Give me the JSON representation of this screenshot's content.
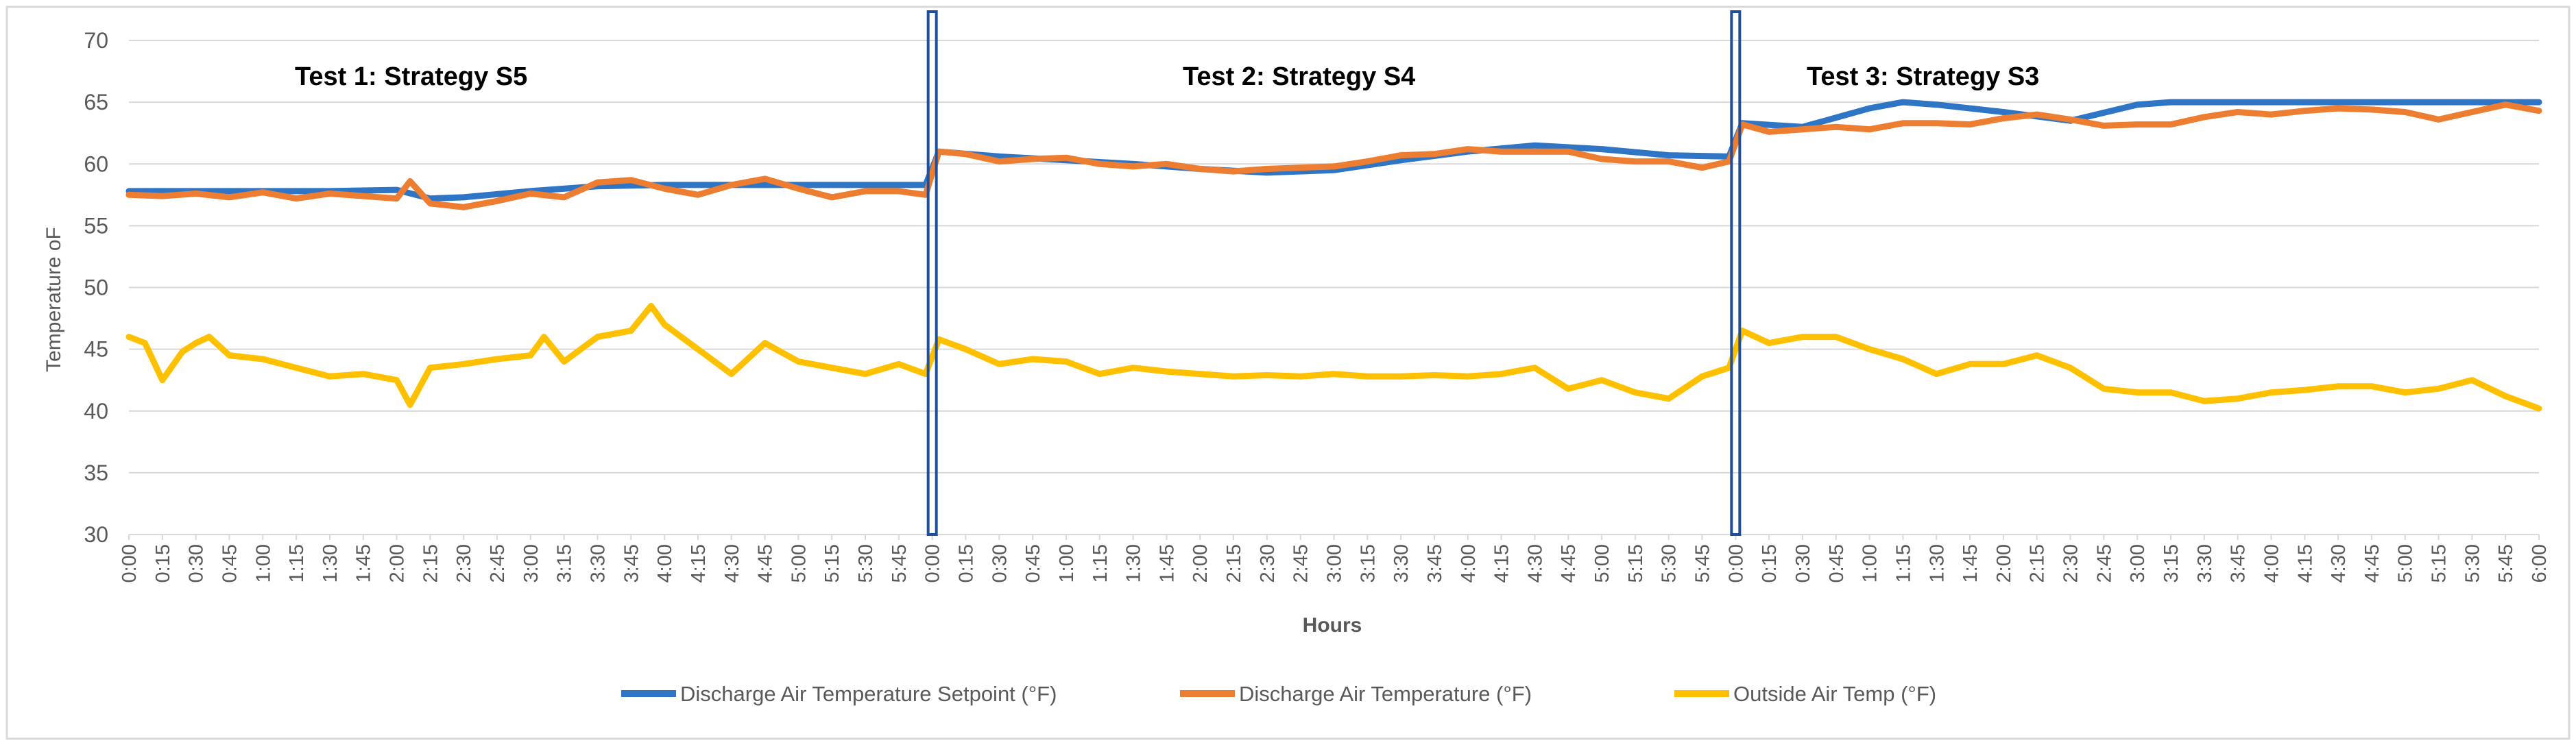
{
  "chart_data": {
    "type": "line",
    "title": "",
    "xlabel": "Hours",
    "ylabel": "Temperature oF",
    "ylim": [
      30,
      70
    ],
    "yticks": [
      30,
      35,
      40,
      45,
      50,
      55,
      60,
      65,
      70
    ],
    "grid": true,
    "legend_position": "bottom",
    "x_tick_labels": [
      "0:00",
      "0:15",
      "0:30",
      "0:45",
      "1:00",
      "1:15",
      "1:30",
      "1:45",
      "2:00",
      "2:15",
      "2:30",
      "2:45",
      "3:00",
      "3:15",
      "3:30",
      "3:45",
      "4:00",
      "4:15",
      "4:30",
      "4:45",
      "5:00",
      "5:15",
      "5:30",
      "5:45",
      "0:00",
      "0:15",
      "0:30",
      "0:45",
      "1:00",
      "1:15",
      "1:30",
      "1:45",
      "2:00",
      "2:15",
      "2:30",
      "2:45",
      "3:00",
      "3:15",
      "3:30",
      "3:45",
      "4:00",
      "4:15",
      "4:30",
      "4:45",
      "5:00",
      "5:15",
      "5:30",
      "5:45",
      "0:00",
      "0:15",
      "0:30",
      "0:45",
      "1:00",
      "1:15",
      "1:30",
      "1:45",
      "2:00",
      "2:15",
      "2:30",
      "2:45",
      "3:00",
      "3:15",
      "3:30",
      "3:45",
      "4:00",
      "4:15",
      "4:30",
      "4:45",
      "5:00",
      "5:15",
      "5:30",
      "5:45",
      "6:00"
    ],
    "x_unit": "hours since start of combined 18-hour record",
    "segments": [
      {
        "label": "Test 1: Strategy S5",
        "start": 0,
        "end": 6
      },
      {
        "label": "Test 2: Strategy S4",
        "start": 6,
        "end": 12
      },
      {
        "label": "Test 3: Strategy S3",
        "start": 12,
        "end": 18
      }
    ],
    "series": [
      {
        "name": "Discharge Air Temperature Setpoint  (°F)",
        "color": "#2e75c6",
        "x": [
          0,
          0.5,
          1,
          1.5,
          2,
          2.25,
          2.5,
          3,
          3.5,
          4,
          4.5,
          5,
          5.5,
          5.95,
          6.05,
          6.5,
          7,
          7.5,
          8,
          8.5,
          9,
          9.5,
          10,
          10.5,
          11,
          11.5,
          11.95,
          12.05,
          12.5,
          13,
          13.25,
          13.5,
          14,
          14.5,
          15,
          15.25,
          15.5,
          16,
          16.5,
          17,
          17.5,
          18
        ],
        "values": [
          57.8,
          57.8,
          57.8,
          57.8,
          57.9,
          57.2,
          57.3,
          57.8,
          58.2,
          58.3,
          58.3,
          58.3,
          58.3,
          58.3,
          61.0,
          60.6,
          60.3,
          60,
          59.6,
          59.3,
          59.5,
          60.3,
          61.0,
          61.5,
          61.2,
          60.7,
          60.6,
          63.3,
          63.0,
          64.5,
          65.0,
          64.8,
          64.2,
          63.5,
          64.8,
          65.0,
          65.0,
          65.0,
          65.0,
          65.0,
          65.0,
          65.0
        ]
      },
      {
        "name": "Discharge Air Temperature (°F)",
        "color": "#ed7d31",
        "x": [
          0,
          0.25,
          0.5,
          0.75,
          1,
          1.25,
          1.5,
          1.75,
          2,
          2.1,
          2.25,
          2.5,
          2.75,
          3,
          3.25,
          3.5,
          3.75,
          4,
          4.25,
          4.5,
          4.75,
          5,
          5.25,
          5.5,
          5.75,
          5.95,
          6.05,
          6.25,
          6.5,
          6.75,
          7,
          7.25,
          7.5,
          7.75,
          8,
          8.25,
          8.5,
          8.75,
          9,
          9.25,
          9.5,
          9.75,
          10,
          10.25,
          10.5,
          10.75,
          11,
          11.25,
          11.5,
          11.75,
          11.95,
          12.05,
          12.25,
          12.5,
          12.75,
          13,
          13.25,
          13.5,
          13.75,
          14,
          14.25,
          14.5,
          14.75,
          15,
          15.25,
          15.5,
          15.75,
          16,
          16.25,
          16.5,
          16.75,
          17,
          17.25,
          17.5,
          17.75,
          18
        ],
        "values": [
          57.5,
          57.4,
          57.6,
          57.3,
          57.7,
          57.2,
          57.6,
          57.4,
          57.2,
          58.6,
          56.8,
          56.5,
          57.0,
          57.6,
          57.3,
          58.5,
          58.7,
          58.0,
          57.5,
          58.3,
          58.8,
          58.0,
          57.3,
          57.8,
          57.8,
          57.5,
          61.0,
          60.8,
          60.2,
          60.4,
          60.5,
          60.0,
          59.8,
          60.0,
          59.6,
          59.4,
          59.6,
          59.7,
          59.8,
          60.2,
          60.7,
          60.8,
          61.2,
          61.0,
          61.0,
          61.0,
          60.4,
          60.2,
          60.2,
          59.7,
          60.2,
          63.2,
          62.6,
          62.8,
          63.0,
          62.8,
          63.3,
          63.3,
          63.2,
          63.7,
          64.0,
          63.6,
          63.1,
          63.2,
          63.2,
          63.8,
          64.2,
          64.0,
          64.3,
          64.5,
          64.4,
          64.2,
          63.6,
          64.2,
          64.8,
          64.3
        ]
      },
      {
        "name": "Outside Air Temp  (°F)",
        "color": "#ffc000",
        "x": [
          0,
          0.12,
          0.25,
          0.4,
          0.5,
          0.6,
          0.75,
          1,
          1.25,
          1.5,
          1.75,
          2,
          2.1,
          2.25,
          2.5,
          2.75,
          3,
          3.1,
          3.25,
          3.5,
          3.75,
          3.9,
          4,
          4.25,
          4.5,
          4.75,
          5,
          5.25,
          5.5,
          5.75,
          5.95,
          6.05,
          6.25,
          6.5,
          6.75,
          7,
          7.25,
          7.5,
          7.75,
          8,
          8.25,
          8.5,
          8.75,
          9,
          9.25,
          9.5,
          9.75,
          10,
          10.25,
          10.5,
          10.75,
          11,
          11.25,
          11.5,
          11.75,
          11.95,
          12.05,
          12.25,
          12.5,
          12.75,
          13,
          13.25,
          13.5,
          13.75,
          14,
          14.25,
          14.5,
          14.75,
          15,
          15.25,
          15.5,
          15.75,
          16,
          16.25,
          16.5,
          16.75,
          17,
          17.25,
          17.5,
          17.75,
          18
        ],
        "values": [
          46.0,
          45.5,
          42.5,
          44.8,
          45.5,
          46.0,
          44.5,
          44.2,
          43.5,
          42.8,
          43.0,
          42.5,
          40.5,
          43.5,
          43.8,
          44.2,
          44.5,
          46.0,
          44.0,
          46.0,
          46.5,
          48.5,
          47.0,
          45.0,
          43.0,
          45.5,
          44.0,
          43.5,
          43.0,
          43.8,
          43.0,
          45.8,
          45.0,
          43.8,
          44.2,
          44.0,
          43.0,
          43.5,
          43.2,
          43.0,
          42.8,
          42.9,
          42.8,
          43.0,
          42.8,
          42.8,
          42.9,
          42.8,
          43.0,
          43.5,
          41.8,
          42.5,
          41.5,
          41.0,
          42.8,
          43.5,
          46.5,
          45.5,
          46.0,
          46.0,
          45.0,
          44.2,
          43.0,
          43.8,
          43.8,
          44.5,
          43.5,
          41.8,
          41.5,
          41.5,
          40.8,
          41.0,
          41.5,
          41.7,
          42.0,
          42.0,
          41.5,
          41.8,
          42.5,
          41.2,
          40.2
        ]
      }
    ]
  }
}
